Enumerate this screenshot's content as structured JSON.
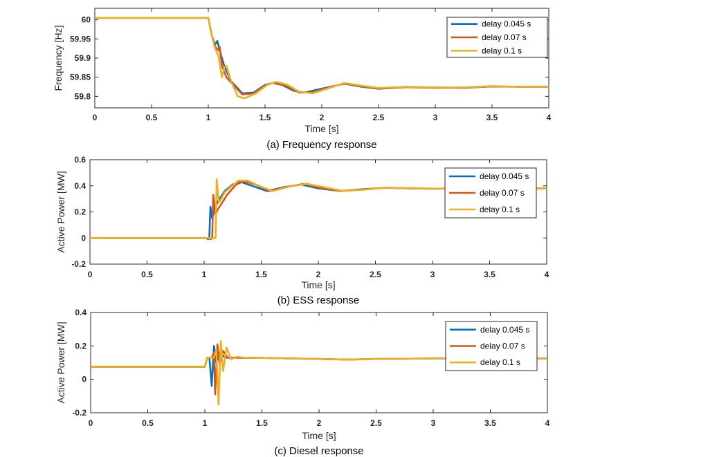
{
  "chart_data": [
    {
      "type": "line",
      "caption": "(a) Frequency response",
      "xlabel": "Time [s]",
      "ylabel": "Frequency [Hz]",
      "xlim": [
        0,
        4
      ],
      "ylim": [
        59.77,
        60.03
      ],
      "xticks": [
        "0",
        "0.5",
        "1",
        "1.5",
        "2",
        "2.5",
        "3",
        "3.5",
        "4"
      ],
      "yticks": [
        "59.8",
        "59.85",
        "59.9",
        "59.95",
        "60"
      ],
      "ytick_values": [
        59.8,
        59.85,
        59.9,
        59.95,
        60
      ],
      "legend_position": "top-right",
      "grid": false,
      "series": [
        {
          "name": "delay 0.045 s",
          "color": "#0072BD",
          "points": [
            [
              0,
              60.005
            ],
            [
              1.0,
              60.005
            ],
            [
              1.03,
              59.96
            ],
            [
              1.06,
              59.935
            ],
            [
              1.08,
              59.945
            ],
            [
              1.1,
              59.92
            ],
            [
              1.14,
              59.88
            ],
            [
              1.2,
              59.84
            ],
            [
              1.3,
              59.808
            ],
            [
              1.4,
              59.81
            ],
            [
              1.5,
              59.83
            ],
            [
              1.57,
              59.835
            ],
            [
              1.65,
              59.83
            ],
            [
              1.75,
              59.815
            ],
            [
              1.85,
              59.81
            ],
            [
              2.0,
              59.82
            ],
            [
              2.2,
              59.833
            ],
            [
              2.35,
              59.825
            ],
            [
              2.5,
              59.82
            ],
            [
              2.75,
              59.824
            ],
            [
              3.0,
              59.823
            ],
            [
              3.25,
              59.822
            ],
            [
              3.5,
              59.826
            ],
            [
              3.75,
              59.825
            ],
            [
              4.0,
              59.825
            ]
          ]
        },
        {
          "name": "delay 0.07 s",
          "color": "#D95319",
          "points": [
            [
              0,
              60.005
            ],
            [
              1.0,
              60.005
            ],
            [
              1.03,
              59.96
            ],
            [
              1.06,
              59.93
            ],
            [
              1.09,
              59.92
            ],
            [
              1.1,
              59.93
            ],
            [
              1.12,
              59.88
            ],
            [
              1.16,
              59.85
            ],
            [
              1.22,
              59.83
            ],
            [
              1.3,
              59.805
            ],
            [
              1.4,
              59.808
            ],
            [
              1.5,
              59.828
            ],
            [
              1.58,
              59.836
            ],
            [
              1.68,
              59.828
            ],
            [
              1.8,
              59.81
            ],
            [
              1.9,
              59.81
            ],
            [
              2.05,
              59.822
            ],
            [
              2.2,
              59.834
            ],
            [
              2.35,
              59.826
            ],
            [
              2.5,
              59.821
            ],
            [
              2.75,
              59.824
            ],
            [
              3.0,
              59.822
            ],
            [
              3.25,
              59.823
            ],
            [
              3.5,
              59.826
            ],
            [
              3.75,
              59.825
            ],
            [
              4.0,
              59.825
            ]
          ]
        },
        {
          "name": "delay 0.1 s",
          "color": "#EDB120",
          "points": [
            [
              0,
              60.005
            ],
            [
              1.0,
              60.005
            ],
            [
              1.03,
              59.96
            ],
            [
              1.06,
              59.925
            ],
            [
              1.09,
              59.905
            ],
            [
              1.12,
              59.85
            ],
            [
              1.14,
              59.875
            ],
            [
              1.16,
              59.88
            ],
            [
              1.2,
              59.84
            ],
            [
              1.26,
              59.8
            ],
            [
              1.32,
              59.795
            ],
            [
              1.42,
              59.808
            ],
            [
              1.52,
              59.83
            ],
            [
              1.6,
              59.838
            ],
            [
              1.7,
              59.83
            ],
            [
              1.8,
              59.812
            ],
            [
              1.92,
              59.808
            ],
            [
              2.05,
              59.82
            ],
            [
              2.2,
              59.835
            ],
            [
              2.35,
              59.828
            ],
            [
              2.5,
              59.822
            ],
            [
              2.75,
              59.825
            ],
            [
              3.0,
              59.823
            ],
            [
              3.25,
              59.823
            ],
            [
              3.5,
              59.827
            ],
            [
              3.75,
              59.825
            ],
            [
              4.0,
              59.825
            ]
          ]
        }
      ]
    },
    {
      "type": "line",
      "caption": "(b) ESS response",
      "xlabel": "Time [s]",
      "ylabel": "Active Power [MW]",
      "xlim": [
        0,
        4
      ],
      "ylim": [
        -0.2,
        0.6
      ],
      "xticks": [
        "0",
        "0.5",
        "1",
        "1.5",
        "2",
        "2.5",
        "3",
        "3.5",
        "4"
      ],
      "yticks": [
        "-0.2",
        "0",
        "0.2",
        "0.4",
        "0.6"
      ],
      "ytick_values": [
        -0.2,
        0,
        0.2,
        0.4,
        0.6
      ],
      "legend_position": "top-right",
      "grid": false,
      "series": [
        {
          "name": "delay 0.045 s",
          "color": "#0072BD",
          "points": [
            [
              0,
              0
            ],
            [
              1.02,
              0
            ],
            [
              1.035,
              -0.01
            ],
            [
              1.045,
              0
            ],
            [
              1.055,
              0.24
            ],
            [
              1.07,
              0.15
            ],
            [
              1.09,
              0.22
            ],
            [
              1.12,
              0.28
            ],
            [
              1.18,
              0.36
            ],
            [
              1.25,
              0.41
            ],
            [
              1.32,
              0.43
            ],
            [
              1.42,
              0.4
            ],
            [
              1.55,
              0.36
            ],
            [
              1.7,
              0.39
            ],
            [
              1.85,
              0.41
            ],
            [
              2.0,
              0.38
            ],
            [
              2.2,
              0.36
            ],
            [
              2.4,
              0.375
            ],
            [
              2.6,
              0.385
            ],
            [
              2.8,
              0.38
            ],
            [
              3.0,
              0.378
            ],
            [
              3.25,
              0.38
            ],
            [
              3.5,
              0.385
            ],
            [
              3.75,
              0.38
            ],
            [
              4.0,
              0.38
            ]
          ]
        },
        {
          "name": "delay 0.07 s",
          "color": "#D95319",
          "points": [
            [
              0,
              0
            ],
            [
              1.04,
              0
            ],
            [
              1.06,
              -0.01
            ],
            [
              1.07,
              0
            ],
            [
              1.08,
              0.33
            ],
            [
              1.1,
              0.18
            ],
            [
              1.12,
              0.22
            ],
            [
              1.15,
              0.26
            ],
            [
              1.2,
              0.33
            ],
            [
              1.28,
              0.41
            ],
            [
              1.35,
              0.435
            ],
            [
              1.45,
              0.41
            ],
            [
              1.57,
              0.36
            ],
            [
              1.72,
              0.39
            ],
            [
              1.87,
              0.415
            ],
            [
              2.02,
              0.385
            ],
            [
              2.2,
              0.36
            ],
            [
              2.4,
              0.372
            ],
            [
              2.6,
              0.385
            ],
            [
              2.8,
              0.38
            ],
            [
              3.0,
              0.378
            ],
            [
              3.25,
              0.38
            ],
            [
              3.5,
              0.385
            ],
            [
              3.75,
              0.38
            ],
            [
              4.0,
              0.38
            ]
          ]
        },
        {
          "name": "delay 0.1 s",
          "color": "#EDB120",
          "points": [
            [
              0,
              0
            ],
            [
              1.08,
              0
            ],
            [
              1.1,
              0
            ],
            [
              1.11,
              0.45
            ],
            [
              1.13,
              0.27
            ],
            [
              1.15,
              0.3
            ],
            [
              1.18,
              0.35
            ],
            [
              1.22,
              0.38
            ],
            [
              1.3,
              0.44
            ],
            [
              1.38,
              0.44
            ],
            [
              1.48,
              0.4
            ],
            [
              1.6,
              0.36
            ],
            [
              1.75,
              0.395
            ],
            [
              1.9,
              0.415
            ],
            [
              2.05,
              0.39
            ],
            [
              2.22,
              0.36
            ],
            [
              2.4,
              0.37
            ],
            [
              2.6,
              0.386
            ],
            [
              2.8,
              0.382
            ],
            [
              3.0,
              0.379
            ],
            [
              3.25,
              0.38
            ],
            [
              3.5,
              0.386
            ],
            [
              3.75,
              0.38
            ],
            [
              4.0,
              0.38
            ]
          ]
        }
      ]
    },
    {
      "type": "line",
      "caption": "(c) Diesel response",
      "xlabel": "Time [s]",
      "ylabel": "Active Power [MW]",
      "xlim": [
        0,
        4
      ],
      "ylim": [
        -0.2,
        0.4
      ],
      "xticks": [
        "0",
        "0.5",
        "1",
        "1.5",
        "2",
        "2.5",
        "3",
        "3.5",
        "4"
      ],
      "yticks": [
        "-0.2",
        "0",
        "0.2",
        "0.4"
      ],
      "ytick_values": [
        -0.2,
        0,
        0.2,
        0.4
      ],
      "legend_position": "top-right",
      "grid": false,
      "series": [
        {
          "name": "delay 0.045 s",
          "color": "#0072BD",
          "points": [
            [
              0,
              0.075
            ],
            [
              1.0,
              0.075
            ],
            [
              1.02,
              0.13
            ],
            [
              1.04,
              0.13
            ],
            [
              1.06,
              -0.04
            ],
            [
              1.08,
              0.2
            ],
            [
              1.1,
              0.1
            ],
            [
              1.13,
              0.16
            ],
            [
              1.18,
              0.13
            ],
            [
              1.25,
              0.13
            ],
            [
              1.5,
              0.128
            ],
            [
              2.0,
              0.122
            ],
            [
              2.25,
              0.118
            ],
            [
              2.5,
              0.122
            ],
            [
              3.0,
              0.125
            ],
            [
              3.5,
              0.125
            ],
            [
              4.0,
              0.125
            ]
          ]
        },
        {
          "name": "delay 0.07 s",
          "color": "#D95319",
          "points": [
            [
              0,
              0.075
            ],
            [
              1.0,
              0.075
            ],
            [
              1.02,
              0.13
            ],
            [
              1.06,
              0.13
            ],
            [
              1.08,
              0.16
            ],
            [
              1.09,
              -0.09
            ],
            [
              1.11,
              0.21
            ],
            [
              1.13,
              0.09
            ],
            [
              1.16,
              0.17
            ],
            [
              1.2,
              0.13
            ],
            [
              1.3,
              0.13
            ],
            [
              1.5,
              0.128
            ],
            [
              2.0,
              0.122
            ],
            [
              2.25,
              0.118
            ],
            [
              2.5,
              0.122
            ],
            [
              3.0,
              0.125
            ],
            [
              3.5,
              0.125
            ],
            [
              4.0,
              0.125
            ]
          ]
        },
        {
          "name": "delay 0.1 s",
          "color": "#EDB120",
          "points": [
            [
              0,
              0.075
            ],
            [
              1.0,
              0.075
            ],
            [
              1.02,
              0.13
            ],
            [
              1.08,
              0.13
            ],
            [
              1.1,
              0.18
            ],
            [
              1.12,
              -0.15
            ],
            [
              1.14,
              0.23
            ],
            [
              1.16,
              0.05
            ],
            [
              1.19,
              0.19
            ],
            [
              1.23,
              0.12
            ],
            [
              1.28,
              0.135
            ],
            [
              1.35,
              0.13
            ],
            [
              1.5,
              0.128
            ],
            [
              2.0,
              0.122
            ],
            [
              2.25,
              0.118
            ],
            [
              2.5,
              0.122
            ],
            [
              3.0,
              0.125
            ],
            [
              3.5,
              0.125
            ],
            [
              4.0,
              0.125
            ]
          ]
        }
      ]
    }
  ]
}
